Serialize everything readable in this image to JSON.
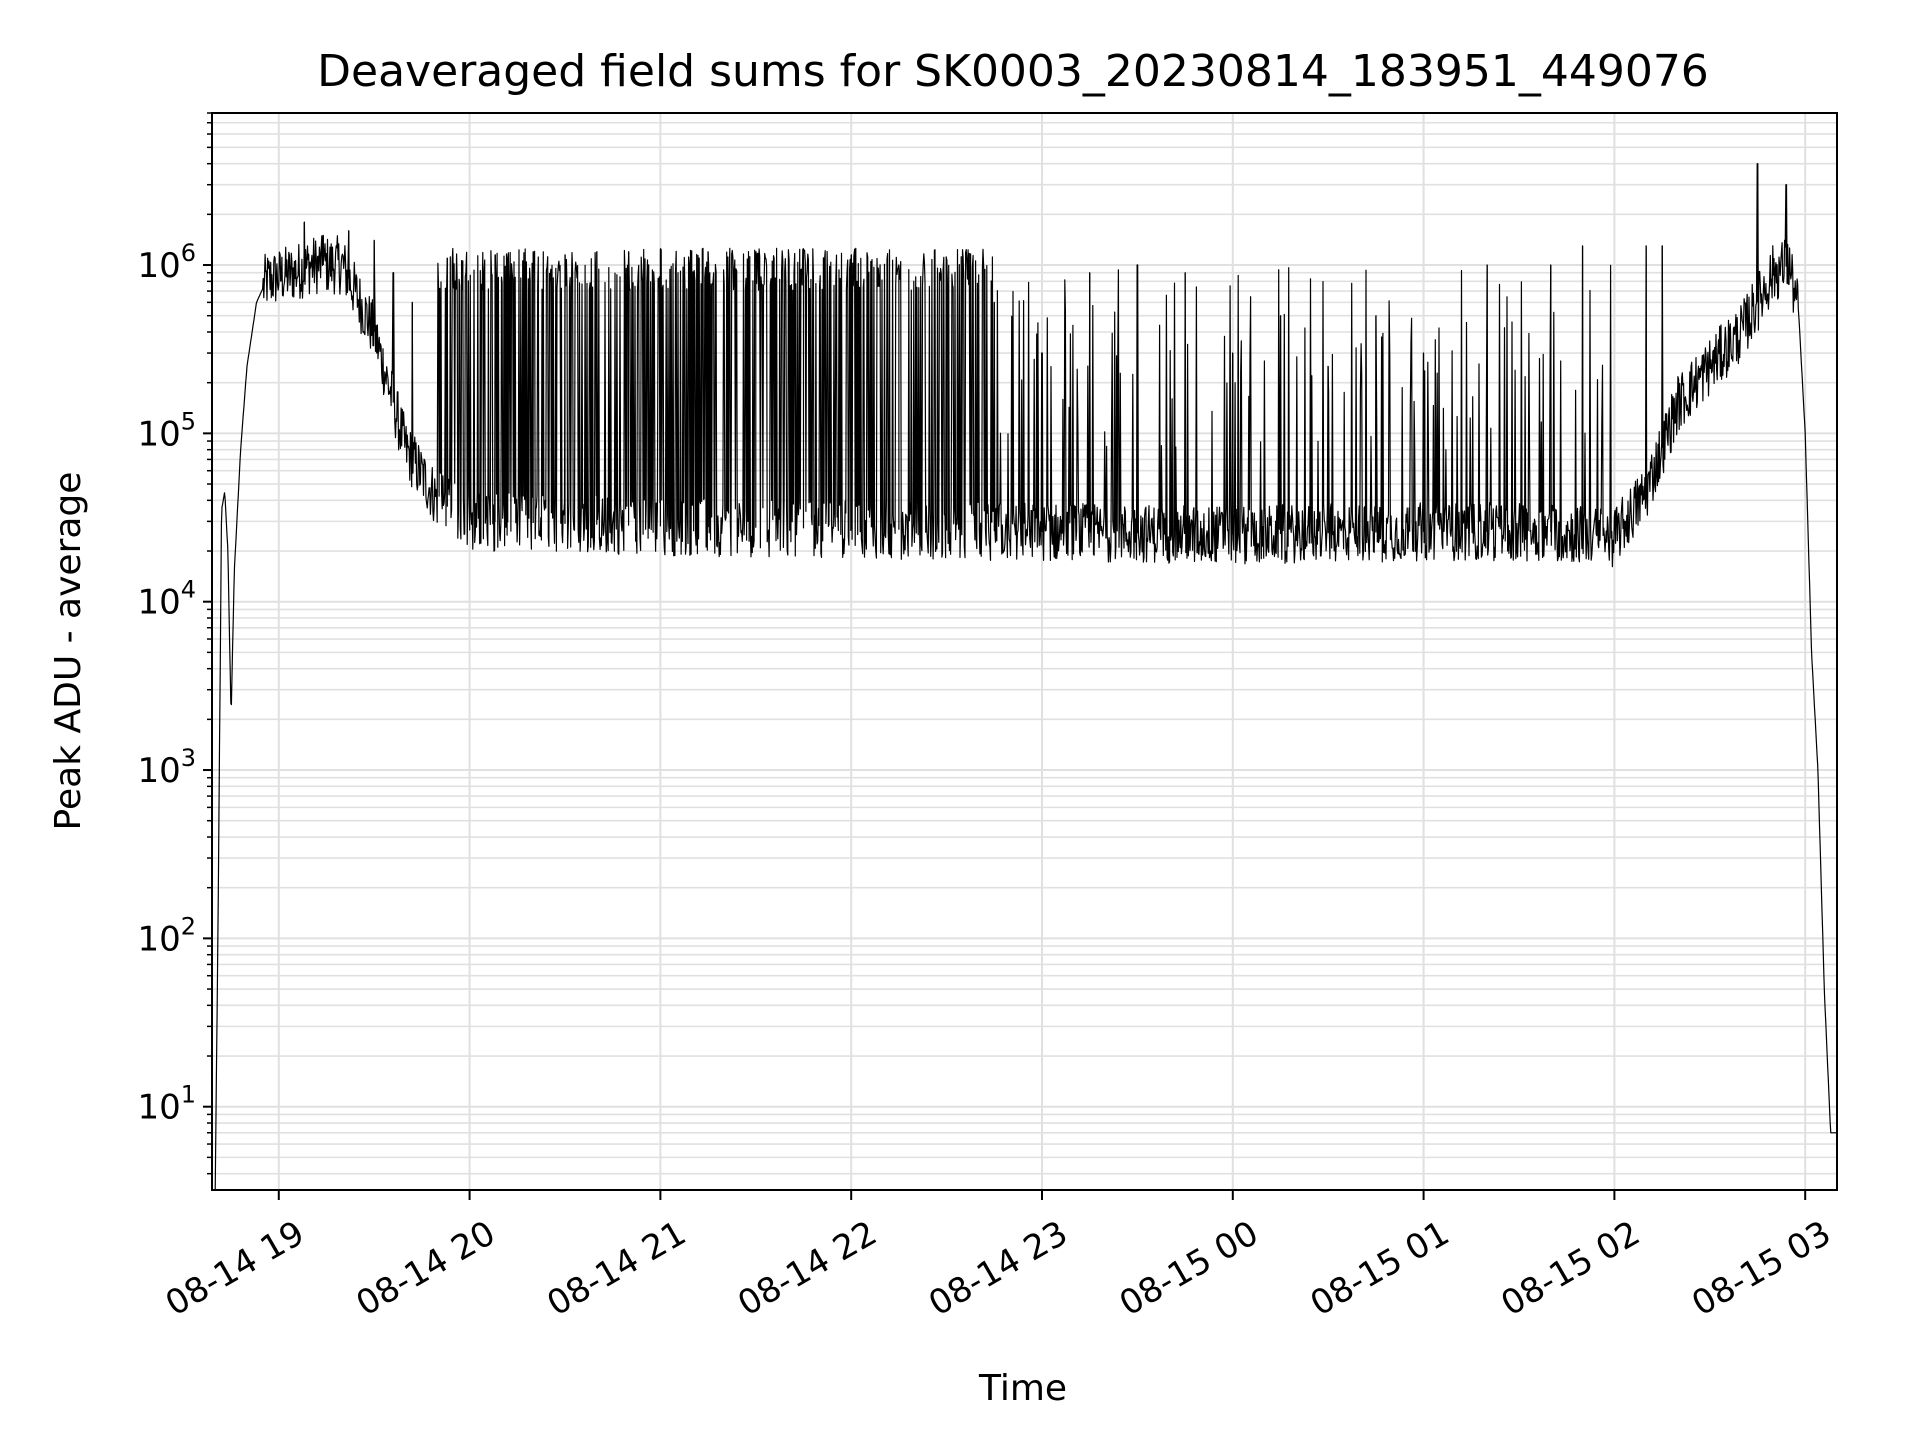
{
  "chart_data": {
    "type": "line",
    "title": "Deaveraged field sums for SK0003_20230814_183951_449076",
    "xlabel": "Time",
    "ylabel": "Peak ADU - average",
    "yscale": "log",
    "grid": true,
    "x_tick_labels": [
      "08-14 19",
      "08-14 20",
      "08-14 21",
      "08-14 22",
      "08-14 23",
      "08-15 00",
      "08-15 01",
      "08-15 02",
      "08-15 03"
    ],
    "y_tick_labels": [
      {
        "base": "10",
        "exp": "1"
      },
      {
        "base": "10",
        "exp": "2"
      },
      {
        "base": "10",
        "exp": "3"
      },
      {
        "base": "10",
        "exp": "4"
      },
      {
        "base": "10",
        "exp": "5"
      },
      {
        "base": "10",
        "exp": "6"
      }
    ],
    "xlim": [
      "2023-08-14 18:39",
      "2023-08-15 03:10"
    ],
    "ylim": [
      3.2,
      8000000
    ],
    "colors": {
      "line": "#000000",
      "grid": "#e0e0e0",
      "axis": "#000000"
    },
    "series": [
      {
        "baseline_x": [
          "2023-08-14 18:40",
          "2023-08-14 18:41",
          "2023-08-14 18:42",
          "2023-08-14 18:43",
          "2023-08-14 18:44",
          "2023-08-14 18:45",
          "2023-08-14 18:46",
          "2023-08-14 18:48",
          "2023-08-14 18:50",
          "2023-08-14 18:53",
          "2023-08-14 18:56",
          "2023-08-14 19:00",
          "2023-08-14 19:05",
          "2023-08-14 19:10",
          "2023-08-14 19:20",
          "2023-08-14 19:30",
          "2023-08-14 19:40",
          "2023-08-14 19:50",
          "2023-08-14 20:00",
          "2023-08-14 21:00",
          "2023-08-14 22:00",
          "2023-08-14 23:00",
          "2023-08-15 00:00",
          "2023-08-15 01:00",
          "2023-08-15 01:40",
          "2023-08-15 02:00",
          "2023-08-15 02:10",
          "2023-08-15 02:20",
          "2023-08-15 02:30",
          "2023-08-15 02:40",
          "2023-08-15 02:50",
          "2023-08-15 02:55",
          "2023-08-15 02:58",
          "2023-08-15 03:00",
          "2023-08-15 03:02",
          "2023-08-15 03:04",
          "2023-08-15 03:06",
          "2023-08-15 03:08",
          "2023-08-15 03:10"
        ],
        "baseline_y": [
          3,
          200,
          35000,
          45000,
          20000,
          2000,
          15000,
          80000,
          250000,
          600000,
          800000,
          850000,
          900000,
          1000000,
          1000000,
          400000,
          80000,
          40000,
          30000,
          28000,
          27000,
          26000,
          25000,
          26000,
          26000,
          24000,
          45000,
          150000,
          250000,
          400000,
          900000,
          1000000,
          500000,
          100000,
          5000,
          1000,
          50,
          7,
          7
        ],
        "spikes": [
          {
            "x": "2023-08-14 19:08",
            "y": 1800000
          },
          {
            "x": "2023-08-14 19:14",
            "y": 1500000
          },
          {
            "x": "2023-08-14 19:22",
            "y": 1600000
          },
          {
            "x": "2023-08-14 19:30",
            "y": 1400000
          },
          {
            "x": "2023-08-14 19:36",
            "y": 900000
          },
          {
            "x": "2023-08-14 19:42",
            "y": 600000
          },
          {
            "x": "2023-08-14 19:53",
            "y": 1100000
          },
          {
            "x": "2023-08-14 20:08",
            "y": 1150000
          },
          {
            "x": "2023-08-14 20:12",
            "y": 1100000
          },
          {
            "x": "2023-08-14 20:20",
            "y": 1200000
          },
          {
            "x": "2023-08-14 20:30",
            "y": 1150000
          },
          {
            "x": "2023-08-14 20:40",
            "y": 1200000
          },
          {
            "x": "2023-08-14 20:50",
            "y": 1200000
          },
          {
            "x": "2023-08-14 21:00",
            "y": 1250000
          },
          {
            "x": "2023-08-14 21:15",
            "y": 1200000
          },
          {
            "x": "2023-08-14 21:30",
            "y": 1200000
          },
          {
            "x": "2023-08-14 21:45",
            "y": 1250000
          },
          {
            "x": "2023-08-14 22:00",
            "y": 1150000
          },
          {
            "x": "2023-08-14 22:15",
            "y": 1000000
          },
          {
            "x": "2023-08-14 22:30",
            "y": 800000
          },
          {
            "x": "2023-08-14 22:45",
            "y": 600000
          },
          {
            "x": "2023-08-14 23:00",
            "y": 300000
          },
          {
            "x": "2023-08-14 23:15",
            "y": 900000
          },
          {
            "x": "2023-08-14 23:30",
            "y": 1000000
          },
          {
            "x": "2023-08-14 23:45",
            "y": 900000
          },
          {
            "x": "2023-08-15 00:00",
            "y": 300000
          },
          {
            "x": "2023-08-15 00:15",
            "y": 500000
          },
          {
            "x": "2023-08-15 00:30",
            "y": 250000
          },
          {
            "x": "2023-08-15 00:45",
            "y": 500000
          },
          {
            "x": "2023-08-15 01:00",
            "y": 300000
          },
          {
            "x": "2023-08-15 01:20",
            "y": 1000000
          },
          {
            "x": "2023-08-15 01:40",
            "y": 1000000
          },
          {
            "x": "2023-08-15 01:50",
            "y": 1300000
          },
          {
            "x": "2023-08-15 02:10",
            "y": 1300000
          },
          {
            "x": "2023-08-15 02:15",
            "y": 1300000
          },
          {
            "x": "2023-08-15 02:45",
            "y": 4000000
          },
          {
            "x": "2023-08-15 02:54",
            "y": 3000000
          }
        ]
      }
    ]
  }
}
